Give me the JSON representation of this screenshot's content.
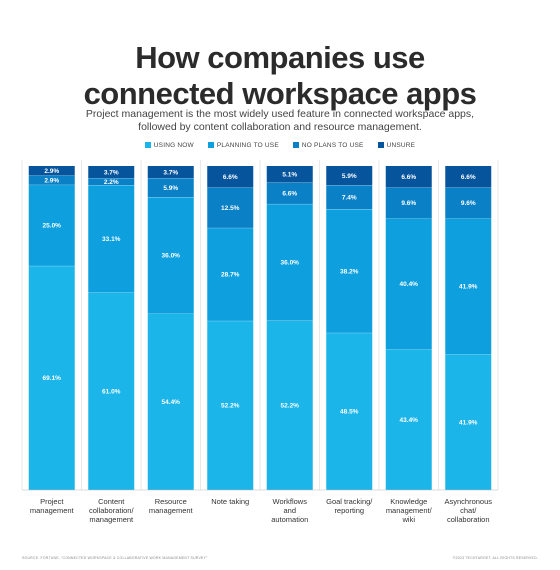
{
  "title_line1": "How companies use",
  "title_line2": "connected workspace apps",
  "subtitle_line1": "Project management is the most widely used feature in connected workspace apps,",
  "subtitle_line2": "followed by content collaboration and resource management.",
  "source": "SOURCE: FORTUNE, “CONNECTED WORKSPACE & COLLABORATIVE WORK MANAGEMENT SURVEY”",
  "copyright": "©2023 TECHTARGET. ALL RIGHTS RESERVED.",
  "colors": {
    "using_now": "#1cb5ea",
    "planning_to_use": "#0ea0de",
    "no_plans_to_use": "#0a80c6",
    "unsure": "#06549b"
  },
  "chart_data": {
    "type": "bar",
    "stacked": true,
    "normalized": true,
    "title": "How companies use connected workspace apps",
    "legend_position": "top",
    "categories": [
      [
        "Project",
        "management"
      ],
      [
        "Content",
        "collaboration/",
        "management"
      ],
      [
        "Resource",
        "management"
      ],
      [
        "Note taking"
      ],
      [
        "Workflows",
        "and",
        "automation"
      ],
      [
        "Goal tracking/",
        "reporting"
      ],
      [
        "Knowledge",
        "management/",
        "wiki"
      ],
      [
        "Asynchronous",
        "chat/",
        "collaboration"
      ]
    ],
    "series": [
      {
        "name": "USING NOW",
        "values": [
          69.1,
          61.0,
          54.4,
          52.2,
          52.2,
          48.5,
          43.4,
          41.9
        ]
      },
      {
        "name": "PLANNING TO USE",
        "values": [
          25.0,
          33.1,
          36.0,
          28.7,
          36.0,
          38.2,
          40.4,
          41.9
        ]
      },
      {
        "name": "NO PLANS TO USE",
        "values": [
          2.9,
          2.2,
          5.9,
          12.5,
          6.6,
          7.4,
          9.6,
          9.6
        ]
      },
      {
        "name": "UNSURE",
        "values": [
          2.9,
          3.7,
          3.7,
          6.6,
          5.1,
          5.9,
          6.6,
          6.6
        ]
      }
    ]
  }
}
